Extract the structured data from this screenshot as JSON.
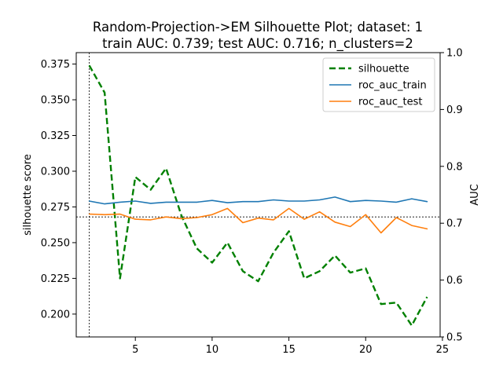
{
  "chart_data": {
    "type": "line",
    "title_line1": "Random-Projection->EM Silhouette Plot; dataset: 1",
    "title_line2": "train AUC: 0.739; test AUC: 0.716; n_clusters=2",
    "xlabel": "",
    "ylabel_left": "silhouette score",
    "ylabel_right": "AUC",
    "xlim": [
      1.15,
      24.85
    ],
    "ylim_left": [
      0.184,
      0.383
    ],
    "ylim_right": [
      0.5,
      1.0
    ],
    "x_ticks": [
      5,
      10,
      15,
      20,
      25
    ],
    "y_left_ticks": [
      0.2,
      0.225,
      0.25,
      0.275,
      0.3,
      0.325,
      0.35,
      0.375
    ],
    "y_left_tick_labels": [
      "0.200",
      "0.225",
      "0.250",
      "0.275",
      "0.300",
      "0.325",
      "0.350",
      "0.375"
    ],
    "y_right_ticks": [
      0.5,
      0.6,
      0.7,
      0.8,
      0.9,
      1.0
    ],
    "y_right_tick_labels": [
      "0.5",
      "0.6",
      "0.7",
      "0.8",
      "0.9",
      "1.0"
    ],
    "x": [
      2,
      3,
      4,
      5,
      6,
      7,
      8,
      9,
      10,
      11,
      12,
      13,
      14,
      15,
      16,
      17,
      18,
      19,
      20,
      21,
      22,
      23,
      24
    ],
    "series": [
      {
        "name": "silhouette",
        "axis": "left",
        "color": "#008000",
        "dashed": true,
        "values": [
          0.374,
          0.355,
          0.225,
          0.296,
          0.287,
          0.302,
          0.269,
          0.246,
          0.236,
          0.25,
          0.23,
          0.223,
          0.243,
          0.258,
          0.225,
          0.23,
          0.241,
          0.229,
          0.232,
          0.207,
          0.208,
          0.192,
          0.212
        ]
      },
      {
        "name": "roc_auc_train",
        "axis": "right",
        "color": "#1f77b4",
        "dashed": false,
        "values": [
          0.739,
          0.734,
          0.737,
          0.739,
          0.735,
          0.737,
          0.737,
          0.737,
          0.74,
          0.736,
          0.738,
          0.738,
          0.741,
          0.739,
          0.739,
          0.741,
          0.746,
          0.738,
          0.74,
          0.739,
          0.737,
          0.743,
          0.738
        ]
      },
      {
        "name": "roc_auc_test",
        "axis": "right",
        "color": "#ff7f0e",
        "dashed": false,
        "values": [
          0.716,
          0.715,
          0.716,
          0.707,
          0.706,
          0.711,
          0.708,
          0.71,
          0.715,
          0.726,
          0.701,
          0.709,
          0.706,
          0.726,
          0.707,
          0.72,
          0.702,
          0.694,
          0.715,
          0.683,
          0.71,
          0.696,
          0.69
        ]
      }
    ],
    "reference_lines": {
      "vertical_x": 2,
      "horizontal_y_left": 0.268
    },
    "legend": {
      "placement": "upper right",
      "entries": [
        "silhouette",
        "roc_auc_train",
        "roc_auc_test"
      ]
    },
    "grid": false
  }
}
